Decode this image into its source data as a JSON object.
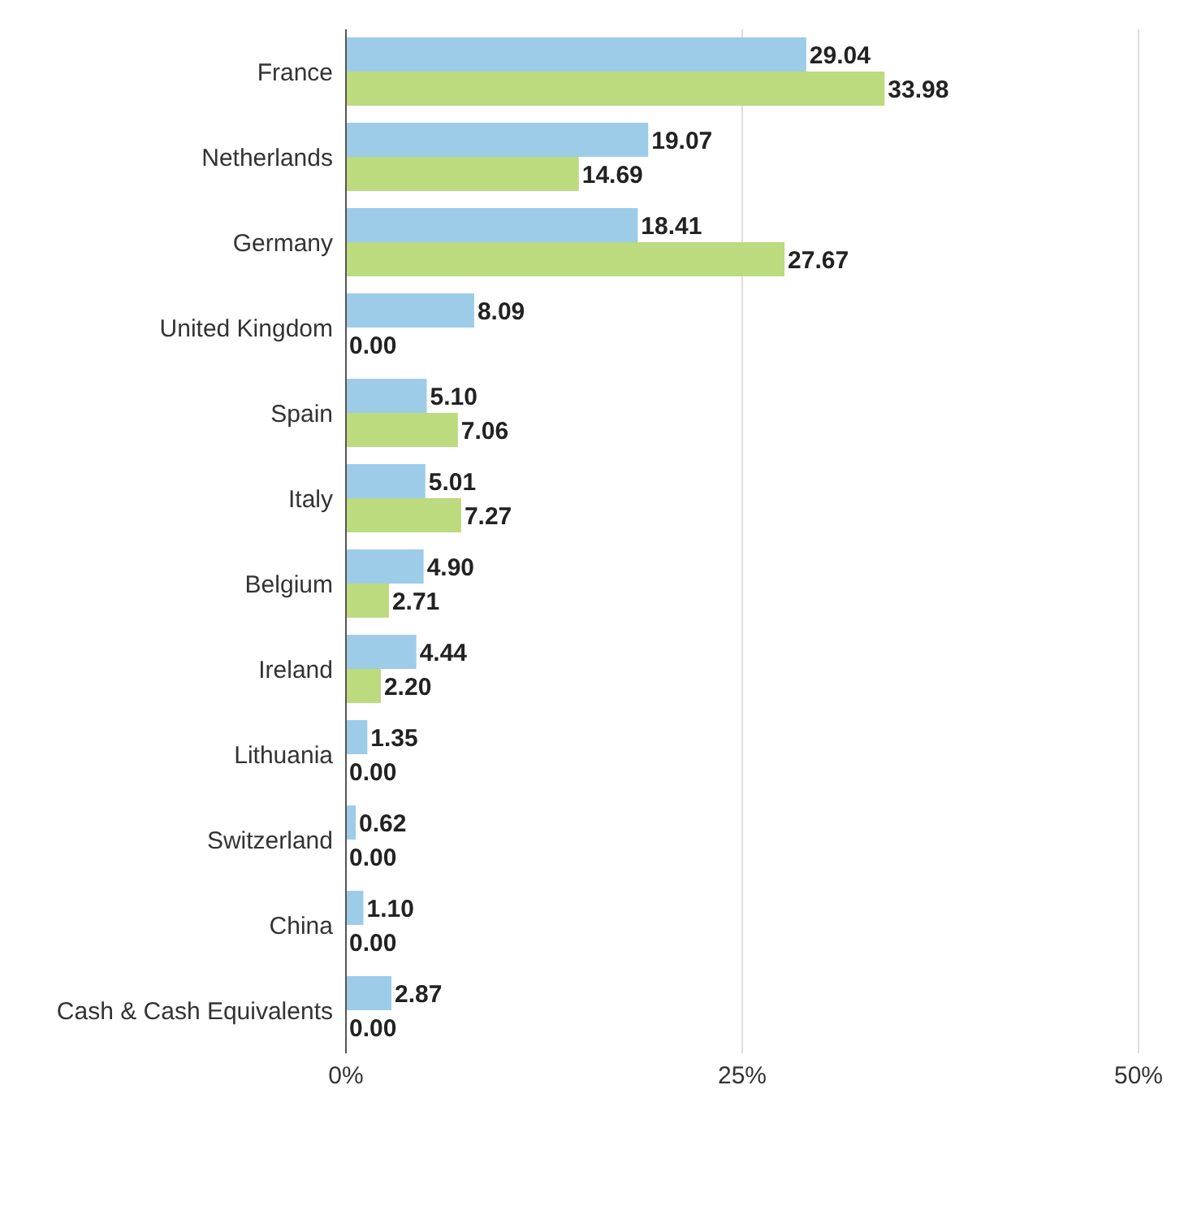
{
  "chart_data": {
    "type": "bar",
    "orientation": "horizontal",
    "categories": [
      "France",
      "Netherlands",
      "Germany",
      "United Kingdom",
      "Spain",
      "Italy",
      "Belgium",
      "Ireland",
      "Lithuania",
      "Switzerland",
      "China",
      "Cash & Cash Equivalents"
    ],
    "series": [
      {
        "color": "#9dcce9",
        "values": [
          29.04,
          19.07,
          18.41,
          8.09,
          5.1,
          5.01,
          4.9,
          4.44,
          1.35,
          0.62,
          1.1,
          2.87
        ],
        "value_labels": [
          "29.04",
          "19.07",
          "18.41",
          "8.09",
          "5.10",
          "5.01",
          "4.90",
          "4.44",
          "1.35",
          "0.62",
          "1.10",
          "2.87"
        ]
      },
      {
        "color": "#bcda7e",
        "values": [
          33.98,
          14.69,
          27.67,
          0.0,
          7.06,
          7.27,
          2.71,
          2.2,
          0.0,
          0.0,
          0.0,
          0.0
        ],
        "value_labels": [
          "33.98",
          "14.69",
          "27.67",
          "0.00",
          "7.06",
          "7.27",
          "2.71",
          "2.20",
          "0.00",
          "0.00",
          "0.00",
          "0.00"
        ]
      }
    ],
    "xlim": [
      0,
      50
    ],
    "xticks": [
      {
        "value": 0,
        "label": "0%"
      },
      {
        "value": 25,
        "label": "25%"
      },
      {
        "value": 50,
        "label": "50%"
      }
    ],
    "grid": "x",
    "legend": false
  }
}
